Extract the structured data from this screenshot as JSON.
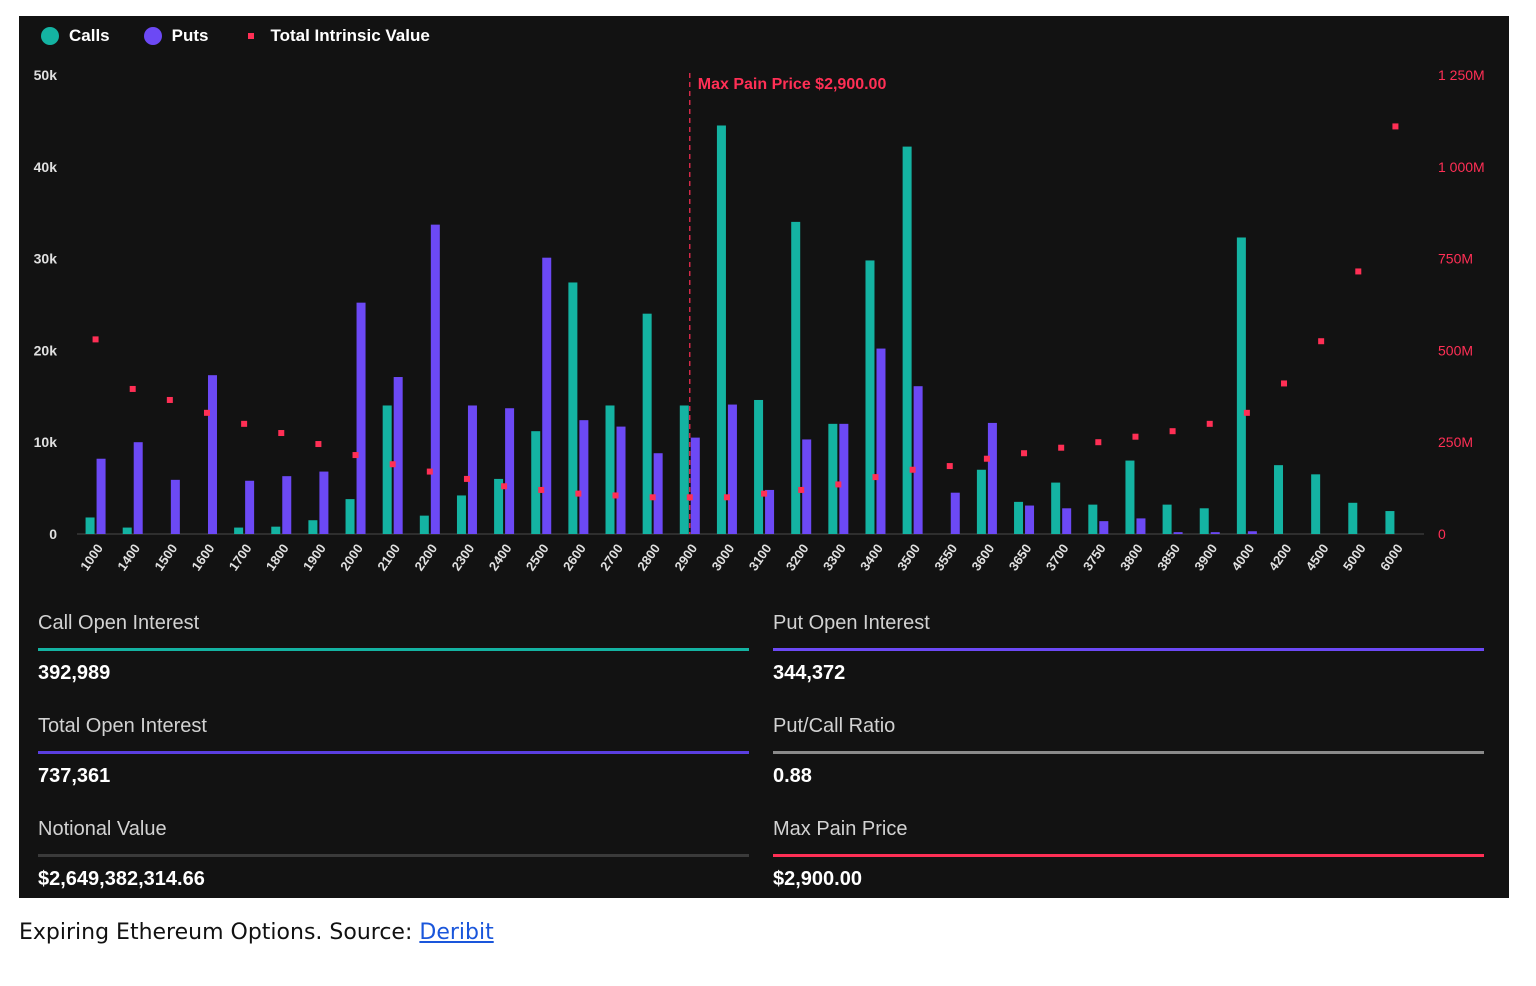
{
  "colors": {
    "calls": "#14b3a2",
    "puts": "#6c49f5",
    "intrinsic": "#ff2f55",
    "axis_text": "#e0e0e0",
    "secondary_axis_text": "#ff2f55",
    "neutral_line": "#8a8a8a",
    "dark_line": "#3a3a3a"
  },
  "legend": {
    "calls_label": "Calls",
    "puts_label": "Puts",
    "intrinsic_label": "Total Intrinsic Value",
    "calls_icon": "teal-circle-icon",
    "puts_icon": "purple-circle-icon",
    "intrinsic_icon": "red-square-icon"
  },
  "chart_data": {
    "type": "bar",
    "categories": [
      "1000",
      "1400",
      "1500",
      "1600",
      "1700",
      "1800",
      "1900",
      "2000",
      "2100",
      "2200",
      "2300",
      "2400",
      "2500",
      "2600",
      "2700",
      "2800",
      "2900",
      "3000",
      "3100",
      "3200",
      "3300",
      "3400",
      "3500",
      "3550",
      "3600",
      "3650",
      "3700",
      "3750",
      "3800",
      "3850",
      "3900",
      "4000",
      "4200",
      "4500",
      "5000",
      "6000"
    ],
    "series": [
      {
        "name": "Calls",
        "axis": "left",
        "values": [
          1800,
          700,
          0,
          0,
          700,
          800,
          1500,
          3800,
          14000,
          2000,
          4200,
          6000,
          11200,
          27400,
          14000,
          24000,
          14000,
          44500,
          14600,
          34000,
          12000,
          29800,
          42200,
          0,
          7000,
          3500,
          5600,
          3200,
          8000,
          3200,
          2800,
          32300,
          7500,
          6500,
          3400,
          2500
        ]
      },
      {
        "name": "Puts",
        "axis": "left",
        "values": [
          8200,
          10000,
          5900,
          17300,
          5800,
          6300,
          6800,
          25200,
          17100,
          33700,
          14000,
          13700,
          30100,
          12400,
          11700,
          8800,
          10500,
          14100,
          4800,
          10300,
          12000,
          20200,
          16100,
          4500,
          12100,
          3100,
          2800,
          1400,
          1700,
          200,
          200,
          300,
          0,
          0,
          0,
          0
        ]
      },
      {
        "name": "Total Intrinsic Value",
        "type": "scatter",
        "axis": "right",
        "values": [
          530,
          395,
          365,
          330,
          300,
          275,
          245,
          215,
          190,
          170,
          150,
          130,
          120,
          110,
          105,
          100,
          100,
          100,
          110,
          120,
          135,
          155,
          175,
          185,
          205,
          220,
          235,
          250,
          265,
          280,
          300,
          330,
          410,
          525,
          715,
          1110
        ]
      }
    ],
    "left_axis": {
      "ylim": [
        0,
        50000
      ],
      "tick_labels": [
        "0",
        "10k",
        "20k",
        "30k",
        "40k",
        "50k"
      ],
      "tick_values": [
        0,
        10000,
        20000,
        30000,
        40000,
        50000
      ]
    },
    "right_axis": {
      "ylim": [
        0,
        1250
      ],
      "tick_labels": [
        "0",
        "250M",
        "500M",
        "750M",
        "1 000M",
        "1 250M"
      ],
      "tick_values": [
        0,
        250,
        500,
        750,
        1000,
        1250
      ]
    },
    "annotation": {
      "text": "Max Pain Price $2,900.00",
      "category": "2900"
    },
    "grid": false,
    "legend_position": "top-left"
  },
  "stats": {
    "call_oi_label": "Call Open Interest",
    "call_oi_value": "392,989",
    "put_oi_label": "Put Open Interest",
    "put_oi_value": "344,372",
    "total_oi_label": "Total Open Interest",
    "total_oi_value": "737,361",
    "pc_ratio_label": "Put/Call Ratio",
    "pc_ratio_value": "0.88",
    "notional_label": "Notional Value",
    "notional_value": "$2,649,382,314.66",
    "max_pain_label": "Max Pain Price",
    "max_pain_value": "$2,900.00"
  },
  "caption": {
    "text": "Expiring Ethereum Options. Source: ",
    "link_text": "Deribit"
  }
}
